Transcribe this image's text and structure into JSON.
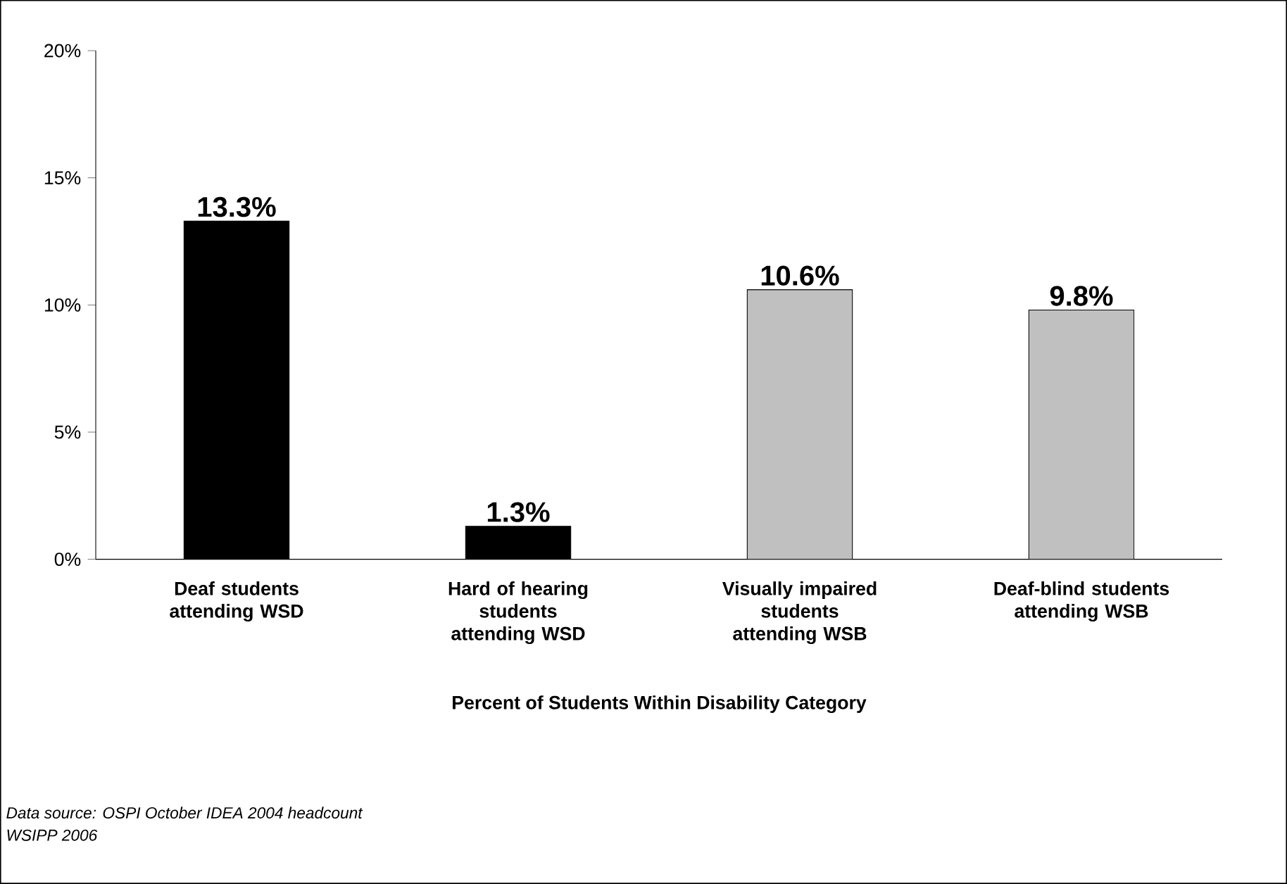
{
  "chart_data": {
    "type": "bar",
    "categories": [
      "Deaf students attending WSD",
      "Hard of hearing students attending WSD",
      "Visually impaired students attending WSB",
      "Deaf-blind students attending WSB"
    ],
    "values": [
      13.3,
      1.3,
      10.6,
      9.8
    ],
    "value_labels": [
      "13.3%",
      "1.3%",
      "10.6%",
      "9.8%"
    ],
    "colors": [
      "#000000",
      "#000000",
      "#c0c0c0",
      "#c0c0c0"
    ],
    "xlabel": "Percent of Students Within Disability Category",
    "ylim": [
      0,
      20
    ],
    "yticks": [
      {
        "value": 0,
        "label": "0%"
      },
      {
        "value": 5,
        "label": "5%"
      },
      {
        "value": 10,
        "label": "10%"
      },
      {
        "value": 15,
        "label": "15%"
      },
      {
        "value": 20,
        "label": "20%"
      }
    ],
    "annotations": [
      "Data source:  OSPI October IDEA 2004 headcount",
      "WSIPP 2006"
    ]
  }
}
